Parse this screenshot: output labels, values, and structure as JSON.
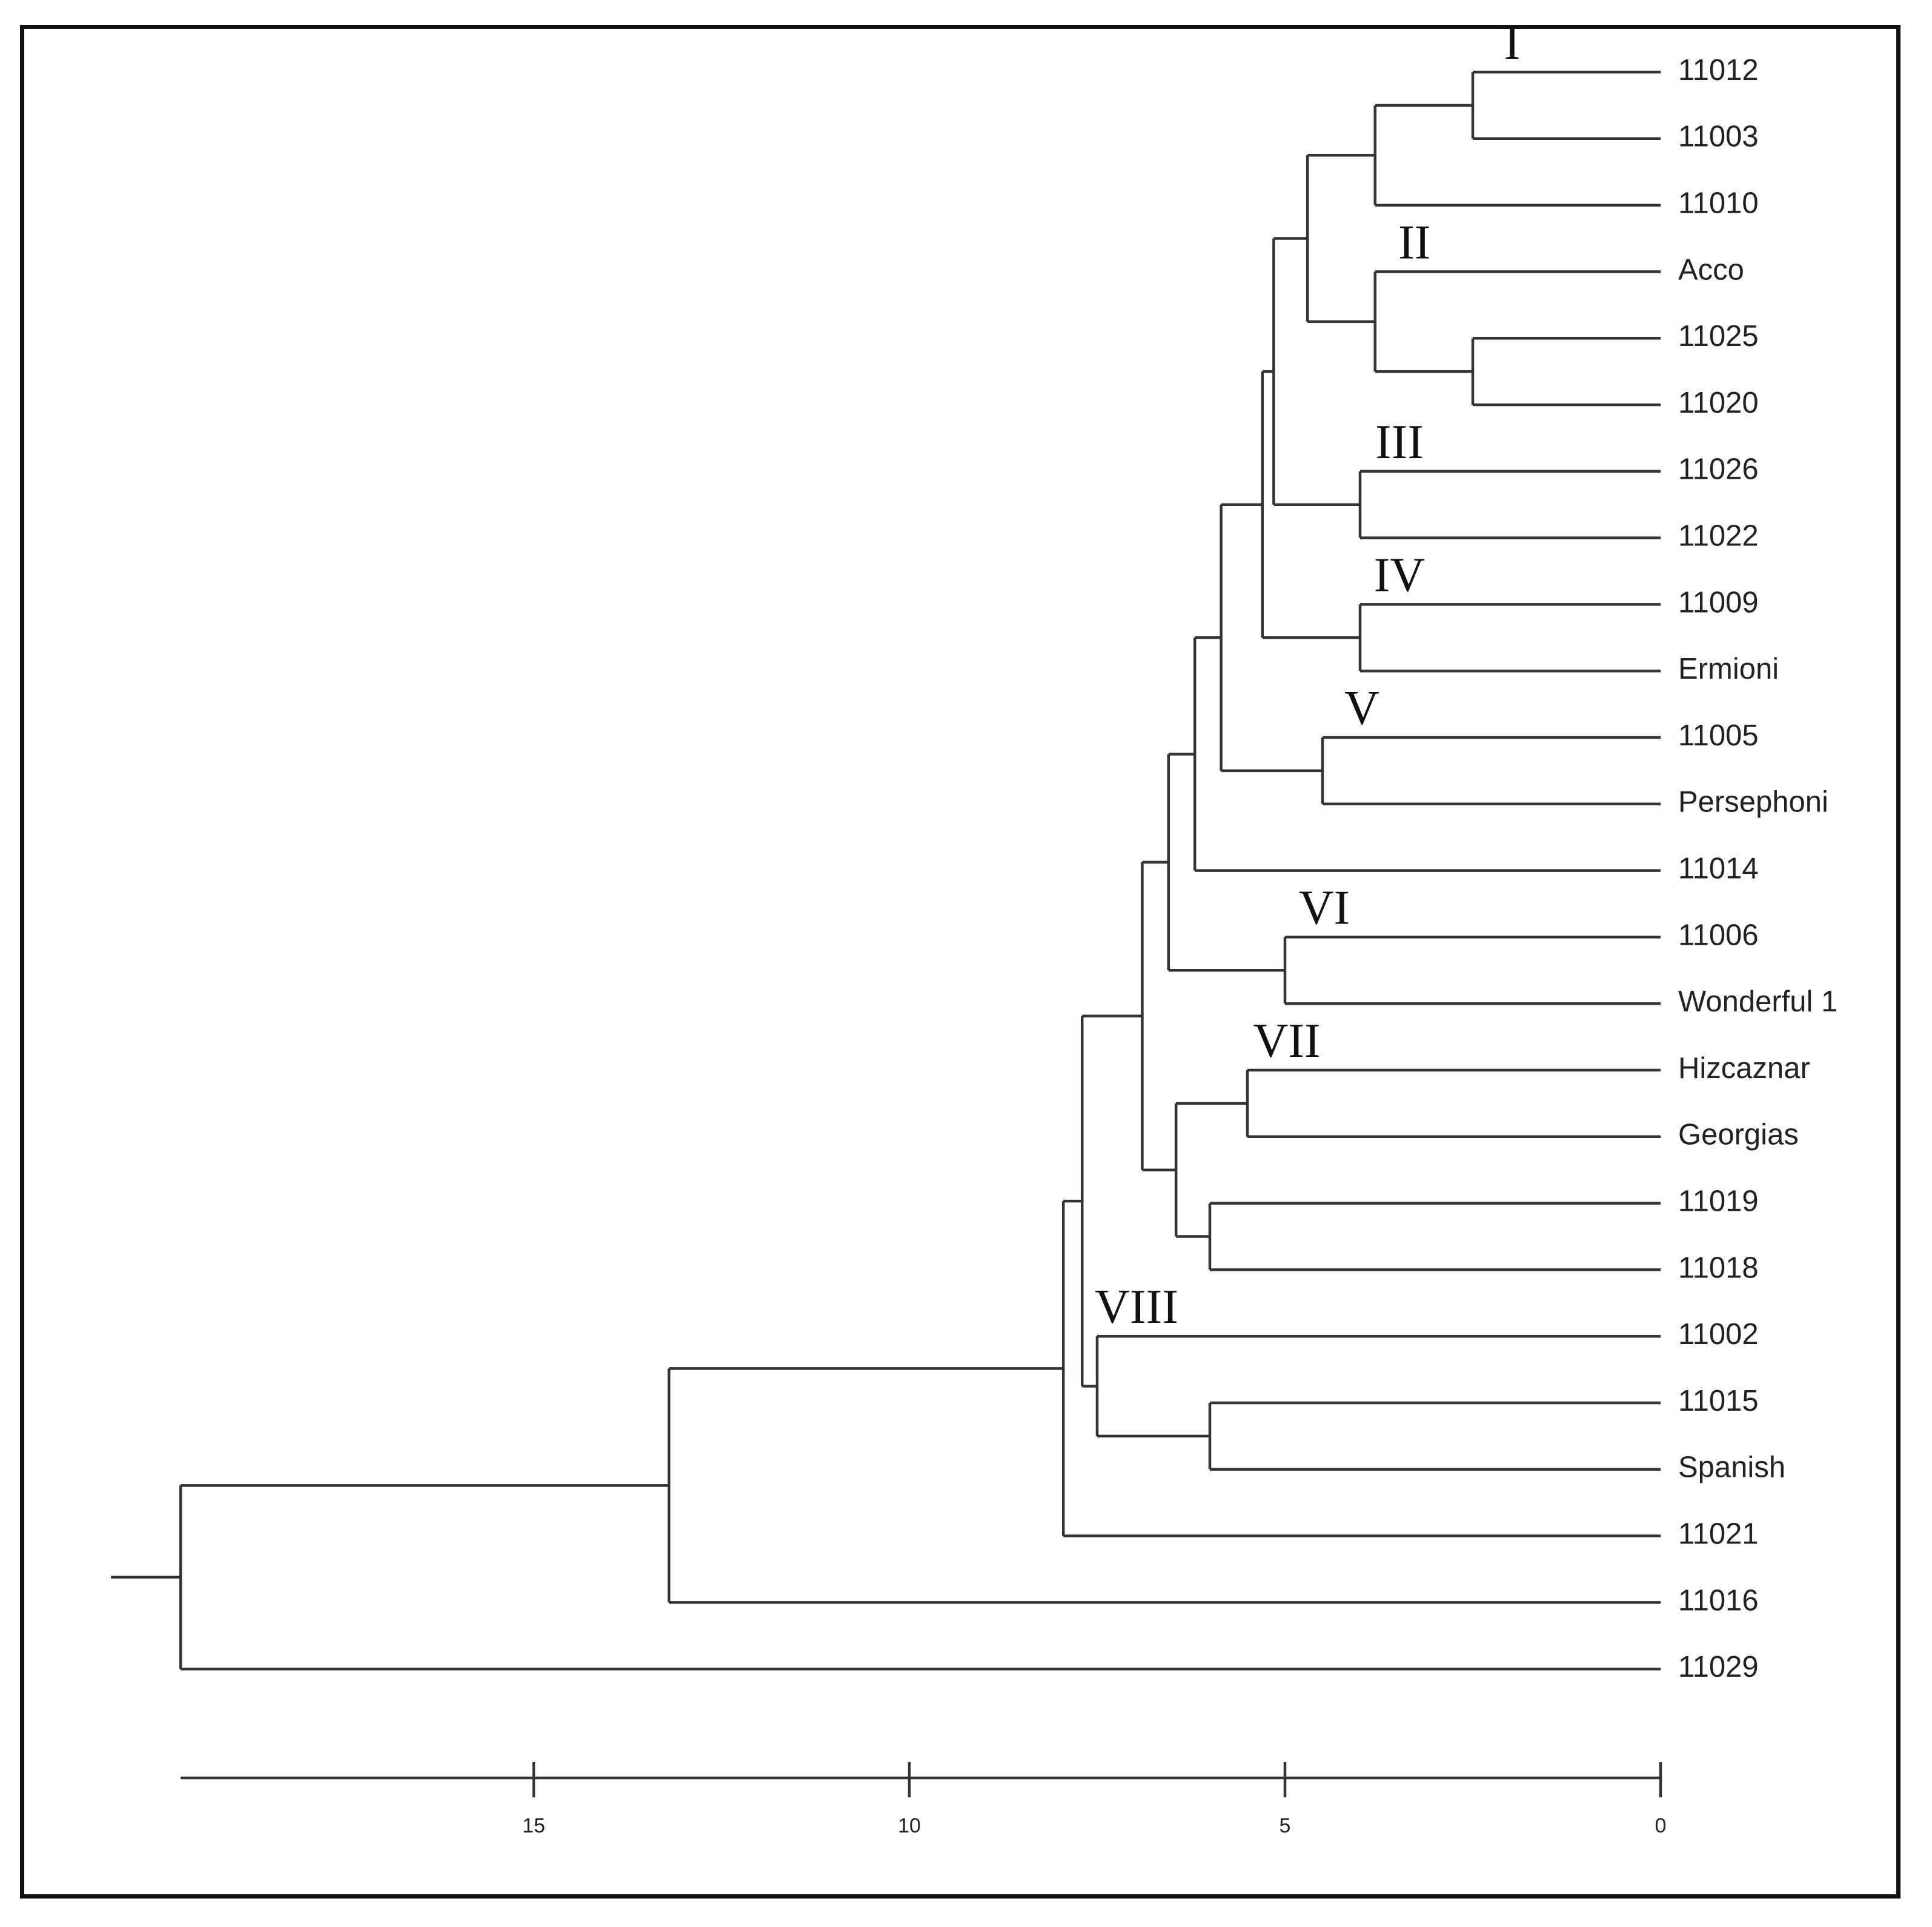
{
  "chart_data": {
    "type": "dendrogram",
    "orientation": "horizontal",
    "xaxis": {
      "ticks": [
        15,
        10,
        5,
        0
      ],
      "tick_labels": [
        "15",
        "10",
        "5",
        "0"
      ],
      "range": [
        20.0,
        0
      ]
    },
    "leaves": [
      "11012",
      "11003",
      "11010",
      "Acco",
      "11025",
      "11020",
      "11026",
      "11022",
      "11009",
      "Ermioni",
      "11005",
      "Persephoni",
      "11014",
      "11006",
      "Wonderful 1",
      "Hizcaznar",
      "Georgias",
      "11019",
      "11018",
      "11002",
      "11015",
      "Spanish",
      "11021",
      "11016",
      "11029"
    ],
    "merges": [
      {
        "id": "n1",
        "left": "11012",
        "right": "11003",
        "height": 2.5
      },
      {
        "id": "n2",
        "left": "n1",
        "right": "11010",
        "height": 3.8
      },
      {
        "id": "n3",
        "left": "11025",
        "right": "11020",
        "height": 2.5
      },
      {
        "id": "n4",
        "left": "Acco",
        "right": "n3",
        "height": 3.8
      },
      {
        "id": "n5",
        "left": "n2",
        "right": "n4",
        "height": 4.7
      },
      {
        "id": "n6",
        "left": "11026",
        "right": "11022",
        "height": 4.0
      },
      {
        "id": "n7",
        "left": "n5",
        "right": "n6",
        "height": 5.15
      },
      {
        "id": "n8",
        "left": "11009",
        "right": "Ermioni",
        "height": 4.0
      },
      {
        "id": "n9",
        "left": "n7",
        "right": "n8",
        "height": 5.3
      },
      {
        "id": "n10",
        "left": "11005",
        "right": "Persephoni",
        "height": 4.5
      },
      {
        "id": "n11",
        "left": "n9",
        "right": "n10",
        "height": 5.85
      },
      {
        "id": "n12",
        "left": "n11",
        "right": "11014",
        "height": 6.2
      },
      {
        "id": "n13",
        "left": "11006",
        "right": "Wonderful 1",
        "height": 5.0
      },
      {
        "id": "n14",
        "left": "n12",
        "right": "n13",
        "height": 6.55
      },
      {
        "id": "n15",
        "left": "Hizcaznar",
        "right": "Georgias",
        "height": 5.5
      },
      {
        "id": "n16",
        "left": "11019",
        "right": "11018",
        "height": 6.0
      },
      {
        "id": "n17",
        "left": "n15",
        "right": "n16",
        "height": 6.45
      },
      {
        "id": "n18",
        "left": "n14",
        "right": "n17",
        "height": 6.9
      },
      {
        "id": "n19",
        "left": "11015",
        "right": "Spanish",
        "height": 6.0
      },
      {
        "id": "n20",
        "left": "11002",
        "right": "n19",
        "height": 7.5
      },
      {
        "id": "n21",
        "left": "n18",
        "right": "n20",
        "height": 7.7
      },
      {
        "id": "n22",
        "left": "n21",
        "right": "11021",
        "height": 7.95
      },
      {
        "id": "n23",
        "left": "n22",
        "right": "11016",
        "height": 13.2
      },
      {
        "id": "n24",
        "left": "n23",
        "right": "11029",
        "height": 19.7
      }
    ],
    "clusters": [
      {
        "label": "I",
        "node": "n1"
      },
      {
        "label": "II",
        "node": "n4"
      },
      {
        "label": "III",
        "node": "n6"
      },
      {
        "label": "IV",
        "node": "n8"
      },
      {
        "label": "V",
        "node": "n10"
      },
      {
        "label": "VI",
        "node": "n13"
      },
      {
        "label": "VII",
        "node": "n15"
      },
      {
        "label": "VIII",
        "node": "n20"
      }
    ]
  }
}
